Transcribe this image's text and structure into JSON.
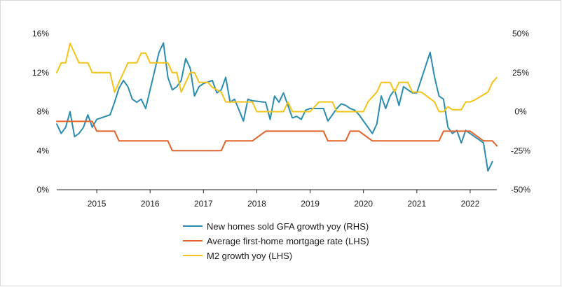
{
  "chart_data": {
    "type": "line",
    "title": "",
    "x_range": [
      "2014-04",
      "2022-07"
    ],
    "x_ticks": [
      "2015",
      "2016",
      "2017",
      "2018",
      "2019",
      "2020",
      "2021",
      "2022"
    ],
    "y_left": {
      "ticks": [
        "0%",
        "4%",
        "8%",
        "12%",
        "16%"
      ],
      "range": [
        0,
        16
      ]
    },
    "y_right": {
      "ticks": [
        "-50%",
        "-25%",
        "0%",
        "25%",
        "50%"
      ],
      "range": [
        -50,
        50
      ]
    },
    "grid": "none",
    "legend_placement": "bottom-center",
    "series": [
      {
        "name": "New homes sold GFA growth yoy (RHS)",
        "axis": "right",
        "color": "#2b8cb0",
        "points": [
          [
            "2014-04",
            -8
          ],
          [
            "2014-05",
            -14
          ],
          [
            "2014-06",
            -10
          ],
          [
            "2014-07",
            0
          ],
          [
            "2014-08",
            -16
          ],
          [
            "2014-09",
            -14
          ],
          [
            "2014-10",
            -10
          ],
          [
            "2014-11",
            -2
          ],
          [
            "2014-12",
            -10
          ],
          [
            "2015-01",
            -5
          ],
          [
            "2015-04",
            -2
          ],
          [
            "2015-05",
            6
          ],
          [
            "2015-06",
            15
          ],
          [
            "2015-07",
            20
          ],
          [
            "2015-08",
            16
          ],
          [
            "2015-09",
            8
          ],
          [
            "2015-10",
            6
          ],
          [
            "2015-11",
            8
          ],
          [
            "2015-12",
            2
          ],
          [
            "2016-03",
            38
          ],
          [
            "2016-04",
            44
          ],
          [
            "2016-05",
            22
          ],
          [
            "2016-06",
            14
          ],
          [
            "2016-07",
            16
          ],
          [
            "2016-08",
            20
          ],
          [
            "2016-09",
            34
          ],
          [
            "2016-10",
            28
          ],
          [
            "2016-11",
            10
          ],
          [
            "2016-12",
            16
          ],
          [
            "2017-01",
            18
          ],
          [
            "2017-02",
            19
          ],
          [
            "2017-03",
            20
          ],
          [
            "2017-04",
            12
          ],
          [
            "2017-05",
            14
          ],
          [
            "2017-06",
            22
          ],
          [
            "2017-07",
            6
          ],
          [
            "2017-08",
            8
          ],
          [
            "2017-09",
            1
          ],
          [
            "2017-10",
            -6
          ],
          [
            "2017-11",
            8
          ],
          [
            "2017-12",
            7
          ],
          [
            "2018-03",
            6
          ],
          [
            "2018-04",
            -5
          ],
          [
            "2018-05",
            10
          ],
          [
            "2018-06",
            6
          ],
          [
            "2018-07",
            12
          ],
          [
            "2018-08",
            4
          ],
          [
            "2018-09",
            -4
          ],
          [
            "2018-10",
            -3
          ],
          [
            "2018-11",
            -5
          ],
          [
            "2018-12",
            1
          ],
          [
            "2019-01",
            2
          ],
          [
            "2019-02",
            2
          ],
          [
            "2019-03",
            2
          ],
          [
            "2019-04",
            2
          ],
          [
            "2019-05",
            -6
          ],
          [
            "2019-06",
            -2
          ],
          [
            "2019-07",
            2
          ],
          [
            "2019-08",
            5
          ],
          [
            "2019-09",
            4
          ],
          [
            "2019-10",
            2
          ],
          [
            "2019-11",
            1
          ],
          [
            "2019-12",
            -2
          ],
          [
            "2020-03",
            -14
          ],
          [
            "2020-04",
            -8
          ],
          [
            "2020-05",
            10
          ],
          [
            "2020-06",
            2
          ],
          [
            "2020-07",
            10
          ],
          [
            "2020-08",
            14
          ],
          [
            "2020-09",
            4
          ],
          [
            "2020-10",
            16
          ],
          [
            "2020-11",
            14
          ],
          [
            "2020-12",
            12
          ],
          [
            "2021-01",
            12
          ],
          [
            "2021-04",
            38
          ],
          [
            "2021-05",
            22
          ],
          [
            "2021-06",
            10
          ],
          [
            "2021-07",
            8
          ],
          [
            "2021-08",
            -10
          ],
          [
            "2021-09",
            -14
          ],
          [
            "2021-10",
            -12
          ],
          [
            "2021-11",
            -20
          ],
          [
            "2021-12",
            -12
          ],
          [
            "2022-03",
            -18
          ],
          [
            "2022-04",
            -20
          ],
          [
            "2022-05",
            -38
          ],
          [
            "2022-06",
            -32
          ]
        ]
      },
      {
        "name": "Average first-home mortgage rate (LHS)",
        "axis": "left",
        "color": "#e2632a",
        "points": [
          [
            "2014-04",
            7.0
          ],
          [
            "2014-12",
            7.0
          ],
          [
            "2015-01",
            6.0
          ],
          [
            "2015-05",
            6.0
          ],
          [
            "2015-06",
            5.0
          ],
          [
            "2016-05",
            5.0
          ],
          [
            "2016-06",
            4.0
          ],
          [
            "2017-05",
            4.0
          ],
          [
            "2017-06",
            5.0
          ],
          [
            "2017-12",
            5.0
          ],
          [
            "2018-03",
            6.0
          ],
          [
            "2019-04",
            6.0
          ],
          [
            "2019-05",
            5.0
          ],
          [
            "2019-09",
            5.0
          ],
          [
            "2019-10",
            6.0
          ],
          [
            "2019-12",
            6.0
          ],
          [
            "2020-03",
            5.0
          ],
          [
            "2021-06",
            5.0
          ],
          [
            "2021-07",
            6.0
          ],
          [
            "2021-10",
            6.0
          ],
          [
            "2022-01",
            6.0
          ],
          [
            "2022-04",
            5.0
          ],
          [
            "2022-06",
            5.0
          ],
          [
            "2022-07",
            4.5
          ]
        ]
      },
      {
        "name": "M2 growth yoy (LHS)",
        "axis": "left",
        "color": "#f3c319",
        "points": [
          [
            "2014-04",
            12.0
          ],
          [
            "2014-05",
            13.0
          ],
          [
            "2014-06",
            13.0
          ],
          [
            "2014-07",
            15.0
          ],
          [
            "2014-08",
            14.0
          ],
          [
            "2014-09",
            13.0
          ],
          [
            "2014-11",
            13.0
          ],
          [
            "2014-12",
            12.0
          ],
          [
            "2015-04",
            12.0
          ],
          [
            "2015-05",
            10.0
          ],
          [
            "2015-06",
            11.0
          ],
          [
            "2015-07",
            12.0
          ],
          [
            "2015-08",
            13.0
          ],
          [
            "2015-10",
            13.0
          ],
          [
            "2015-11",
            14.0
          ],
          [
            "2015-12",
            14.0
          ],
          [
            "2016-01",
            13.0
          ],
          [
            "2016-05",
            13.0
          ],
          [
            "2016-06",
            12.0
          ],
          [
            "2016-07",
            12.0
          ],
          [
            "2016-08",
            10.0
          ],
          [
            "2016-09",
            11.0
          ],
          [
            "2016-10",
            12.0
          ],
          [
            "2016-11",
            12.0
          ],
          [
            "2016-12",
            11.0
          ],
          [
            "2017-02",
            11.0
          ],
          [
            "2017-03",
            10.5
          ],
          [
            "2017-05",
            10.0
          ],
          [
            "2017-06",
            9.0
          ],
          [
            "2017-12",
            9.0
          ],
          [
            "2018-01",
            8.0
          ],
          [
            "2018-07",
            8.0
          ],
          [
            "2018-08",
            9.0
          ],
          [
            "2018-09",
            8.0
          ],
          [
            "2019-01",
            8.0
          ],
          [
            "2019-03",
            9.0
          ],
          [
            "2019-06",
            9.0
          ],
          [
            "2019-07",
            8.0
          ],
          [
            "2020-01",
            8.0
          ],
          [
            "2020-02",
            9.0
          ],
          [
            "2020-04",
            10.0
          ],
          [
            "2020-05",
            11.0
          ],
          [
            "2020-07",
            11.0
          ],
          [
            "2020-08",
            10.0
          ],
          [
            "2020-09",
            11.0
          ],
          [
            "2020-11",
            11.0
          ],
          [
            "2020-12",
            10.0
          ],
          [
            "2021-02",
            10.0
          ],
          [
            "2021-05",
            9.0
          ],
          [
            "2021-06",
            8.0
          ],
          [
            "2021-07",
            8.0
          ],
          [
            "2021-08",
            8.5
          ],
          [
            "2021-09",
            8.2
          ],
          [
            "2021-11",
            8.2
          ],
          [
            "2021-12",
            9.0
          ],
          [
            "2022-01",
            9.0
          ],
          [
            "2022-02",
            9.2
          ],
          [
            "2022-05",
            10.0
          ],
          [
            "2022-06",
            11.0
          ],
          [
            "2022-07",
            11.5
          ]
        ]
      }
    ]
  }
}
